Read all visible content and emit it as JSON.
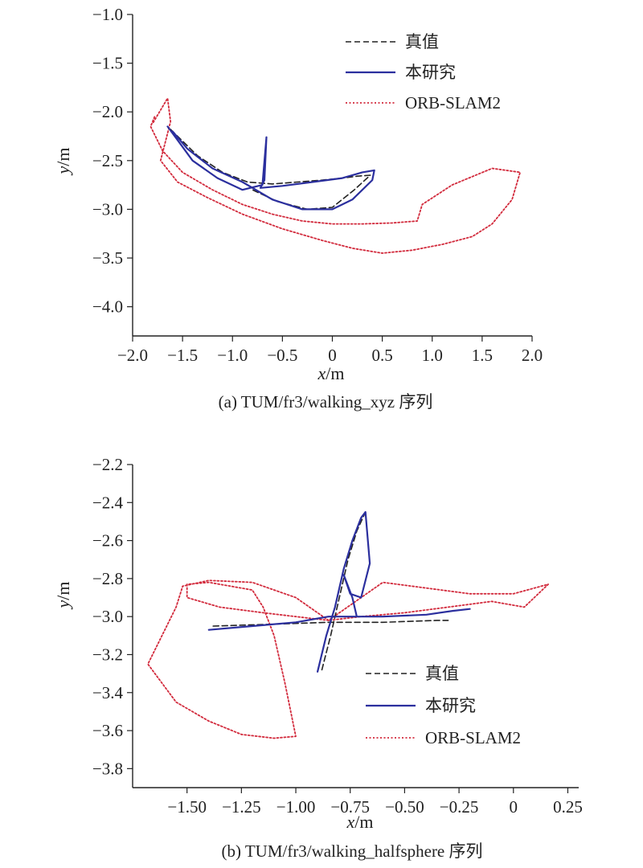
{
  "colors": {
    "truth": "#222222",
    "ours": "#2b2f9e",
    "orb": "#d22a3c",
    "axis": "#222222"
  },
  "chart_data": [
    {
      "type": "line",
      "caption": "(a) TUM/fr3/walking_xyz 序列",
      "xlabel_var": "x",
      "xlabel_unit": "/m",
      "ylabel_var": "y",
      "ylabel_unit": "/m",
      "xlim": [
        -2.0,
        2.0
      ],
      "ylim": [
        -4.3,
        -1.0
      ],
      "xticks": [
        -2.0,
        -1.5,
        -1.0,
        -0.5,
        0,
        0.5,
        1.0,
        1.5,
        2.0
      ],
      "xtick_labels": [
        "−2.0",
        "−1.5",
        "−1.0",
        "−0.5",
        "0",
        "0.5",
        "1.0",
        "1.5",
        "2.0"
      ],
      "yticks": [
        -1.0,
        -1.5,
        -2.0,
        -2.5,
        -3.0,
        -3.5,
        -4.0
      ],
      "ytick_labels": [
        "−1.0",
        "−1.5",
        "−2.0",
        "−2.5",
        "−3.0",
        "−3.5",
        "−4.0"
      ],
      "legend_position": "top-right",
      "series": [
        {
          "name": "真值",
          "style": "dashed",
          "x": [
            -1.62,
            -1.35,
            -1.1,
            -0.85,
            -0.6,
            -0.35,
            -0.1,
            0.1,
            0.25,
            0.38,
            0.22,
            0.0,
            -0.25,
            -0.55,
            -0.8
          ],
          "y": [
            -2.18,
            -2.45,
            -2.62,
            -2.72,
            -2.74,
            -2.72,
            -2.7,
            -2.68,
            -2.66,
            -2.65,
            -2.8,
            -2.98,
            -3.0,
            -2.92,
            -2.8
          ]
        },
        {
          "name": "本研究",
          "style": "solid",
          "x": [
            -1.65,
            -1.4,
            -1.15,
            -0.9,
            -0.7,
            -0.66,
            -0.68,
            -0.72,
            -0.5,
            -0.2,
            0.1,
            0.3,
            0.42,
            0.4,
            0.2,
            0.0,
            -0.3,
            -0.6,
            -0.9,
            -1.2,
            -1.45,
            -1.6
          ],
          "y": [
            -2.15,
            -2.5,
            -2.68,
            -2.8,
            -2.75,
            -2.26,
            -2.7,
            -2.78,
            -2.76,
            -2.72,
            -2.68,
            -2.62,
            -2.6,
            -2.7,
            -2.9,
            -3.0,
            -3.0,
            -2.9,
            -2.72,
            -2.58,
            -2.38,
            -2.2
          ]
        },
        {
          "name": "ORB-SLAM2",
          "style": "dotted",
          "x": [
            -1.78,
            -1.82,
            -1.7,
            -1.5,
            -1.2,
            -0.9,
            -0.6,
            -0.3,
            0.0,
            0.3,
            0.6,
            0.85,
            0.9,
            1.2,
            1.6,
            1.88,
            1.8,
            1.6,
            1.4,
            1.1,
            0.8,
            0.5,
            0.2,
            -0.1,
            -0.5,
            -0.9,
            -1.25,
            -1.55,
            -1.72,
            -1.62,
            -1.65,
            -1.8
          ],
          "y": [
            -2.05,
            -2.15,
            -2.4,
            -2.62,
            -2.8,
            -2.95,
            -3.05,
            -3.12,
            -3.15,
            -3.15,
            -3.14,
            -3.12,
            -2.95,
            -2.75,
            -2.58,
            -2.62,
            -2.9,
            -3.15,
            -3.28,
            -3.36,
            -3.42,
            -3.45,
            -3.4,
            -3.32,
            -3.2,
            -3.05,
            -2.88,
            -2.72,
            -2.5,
            -2.1,
            -1.86,
            -2.12
          ]
        }
      ]
    },
    {
      "type": "line",
      "caption": "(b) TUM/fr3/walking_halfsphere 序列",
      "xlabel_var": "x",
      "xlabel_unit": "/m",
      "ylabel_var": "y",
      "ylabel_unit": "/m",
      "xlim": [
        -1.75,
        0.3
      ],
      "ylim": [
        -3.9,
        -2.2
      ],
      "xticks": [
        -1.5,
        -1.25,
        -1.0,
        -0.75,
        -0.5,
        -0.25,
        0,
        0.25
      ],
      "xtick_labels": [
        "−1.50",
        "−1.25",
        "−1.00",
        "−0.75",
        "−0.50",
        "−0.25",
        "0",
        "0.25"
      ],
      "yticks": [
        -2.2,
        -2.4,
        -2.6,
        -2.8,
        -3.0,
        -3.2,
        -3.4,
        -3.6,
        -3.8
      ],
      "ytick_labels": [
        "−2.2",
        "−2.4",
        "−2.6",
        "−2.8",
        "−3.0",
        "−3.2",
        "−3.4",
        "−3.6",
        "−3.8"
      ],
      "legend_position": "bottom-right",
      "series": [
        {
          "name": "真值",
          "style": "dashed",
          "x": [
            -1.38,
            -1.1,
            -0.85,
            -0.6,
            -0.35,
            -0.3,
            null,
            -0.88,
            -0.84,
            -0.8,
            -0.76,
            -0.72,
            -0.68
          ],
          "y": [
            -3.05,
            -3.04,
            -3.03,
            -3.03,
            -3.02,
            -3.02,
            null,
            -3.28,
            -3.1,
            -2.9,
            -2.7,
            -2.55,
            -2.45
          ]
        },
        {
          "name": "本研究",
          "style": "solid",
          "x": [
            -1.4,
            -1.2,
            -1.0,
            -0.85,
            -0.6,
            -0.4,
            -0.28,
            -0.2,
            null,
            -0.9,
            -0.86,
            -0.82,
            -0.78,
            -0.74,
            -0.7,
            -0.68,
            -0.66,
            -0.7,
            -0.75,
            -0.78,
            -0.74,
            -0.72
          ],
          "y": [
            -3.07,
            -3.05,
            -3.03,
            -3.0,
            -3.0,
            -2.99,
            -2.97,
            -2.96,
            null,
            -3.29,
            -3.1,
            -2.95,
            -2.75,
            -2.6,
            -2.48,
            -2.45,
            -2.72,
            -2.9,
            -2.88,
            -2.78,
            -2.9,
            -3.0
          ]
        },
        {
          "name": "ORB-SLAM2",
          "style": "dotted",
          "x": [
            -0.85,
            -1.0,
            -1.2,
            -1.4,
            -1.52,
            -1.55,
            -1.68,
            -1.55,
            -1.4,
            -1.25,
            -1.1,
            -1.0,
            -1.05,
            -1.1,
            -1.15,
            -1.2,
            -1.4,
            -1.5,
            -1.5,
            -1.35,
            -1.15,
            -1.0,
            -0.85,
            -0.6,
            -0.4,
            -0.2,
            0.0,
            0.16,
            0.05,
            -0.1,
            -0.3,
            -0.5,
            -0.7,
            -0.85
          ],
          "y": [
            -3.02,
            -2.9,
            -2.82,
            -2.81,
            -2.84,
            -2.95,
            -3.25,
            -3.45,
            -3.55,
            -3.62,
            -3.64,
            -3.63,
            -3.35,
            -3.1,
            -2.95,
            -2.86,
            -2.82,
            -2.83,
            -2.9,
            -2.95,
            -2.98,
            -3.0,
            -3.02,
            -2.82,
            -2.85,
            -2.88,
            -2.88,
            -2.83,
            -2.95,
            -2.92,
            -2.95,
            -2.98,
            -3.0,
            -3.02
          ]
        }
      ]
    }
  ]
}
